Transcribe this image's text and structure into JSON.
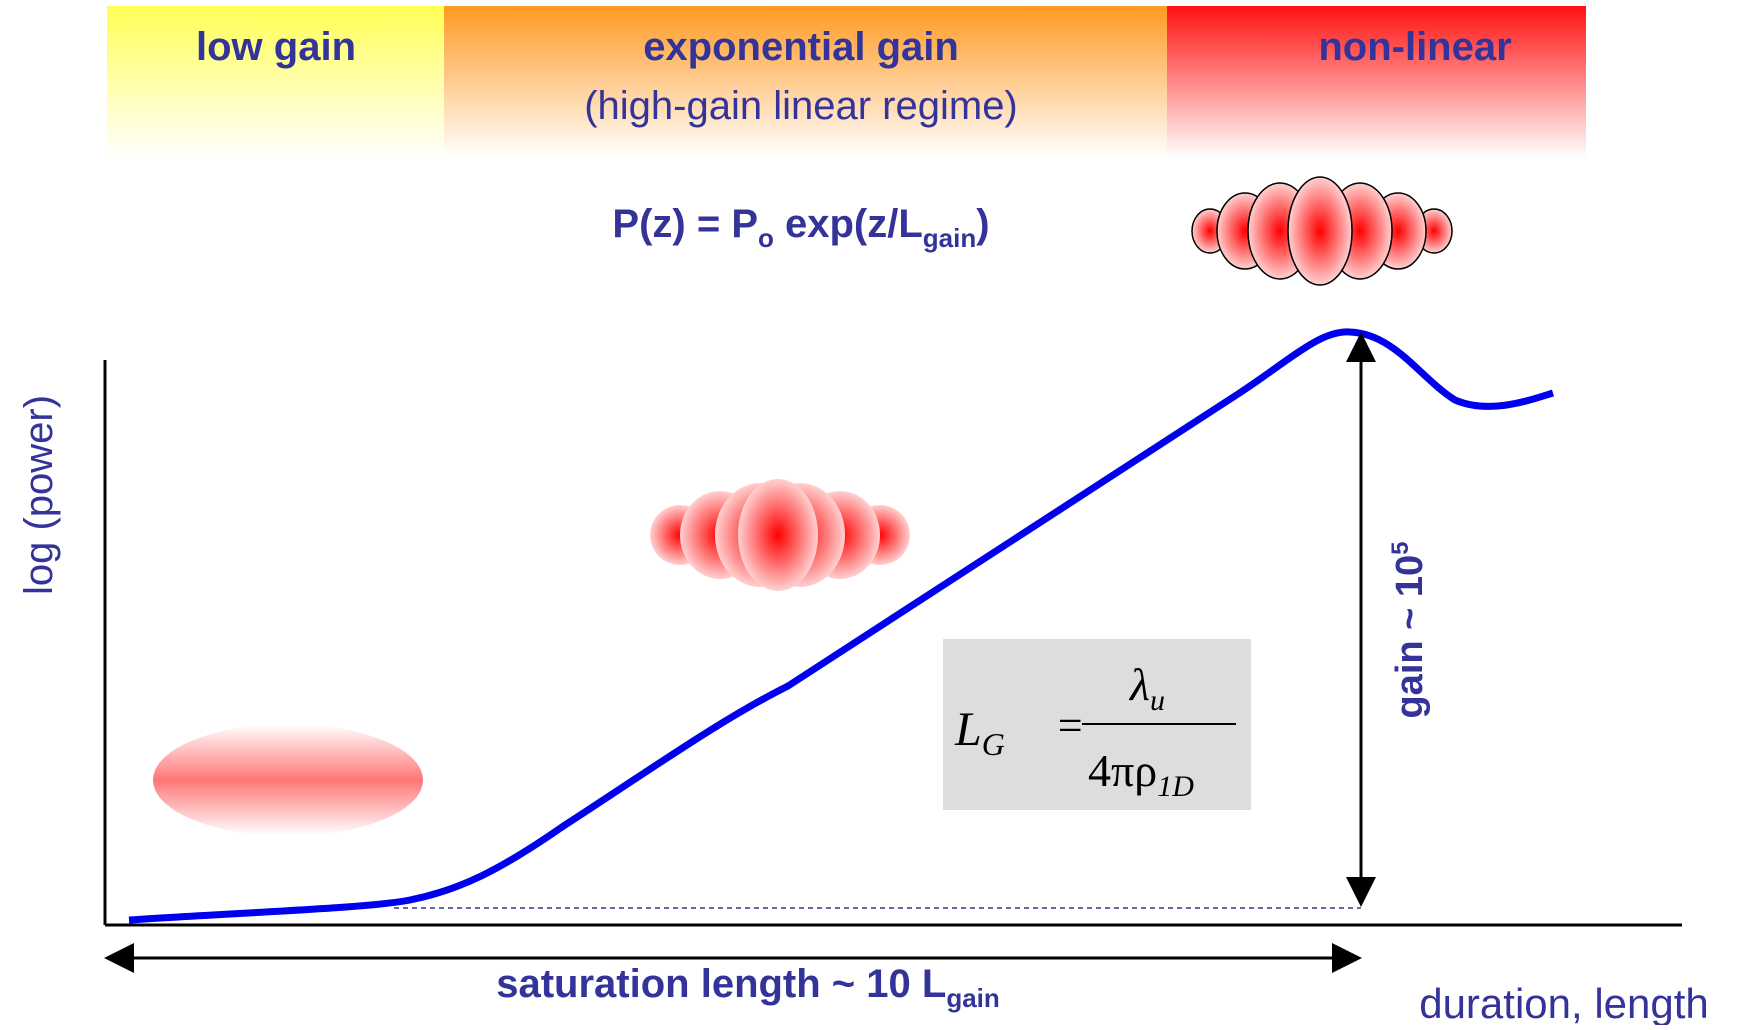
{
  "regions": [
    {
      "title": "low gain"
    },
    {
      "title": "exponential gain",
      "subtitle": "(high-gain linear regime)"
    },
    {
      "title": "non-linear"
    }
  ],
  "power_formula": {
    "lhs": "P(z) = P",
    "sub1": "o",
    "mid": " exp(z/L",
    "sub2": "gain",
    "end": ")"
  },
  "y_axis_label": "log (power)",
  "x_axis_label": "duration, length",
  "gain_label": {
    "text": "gain ~ 10",
    "sup": "5"
  },
  "saturation_label": {
    "text": "saturation length ~ 10 L",
    "sub": "gain"
  },
  "gain_length_formula": {
    "lhs": "L",
    "lhs_sub": "G",
    "eq": "=",
    "num": "λ",
    "num_sub": "u",
    "den": "4πρ",
    "den_sub": "1D"
  }
}
